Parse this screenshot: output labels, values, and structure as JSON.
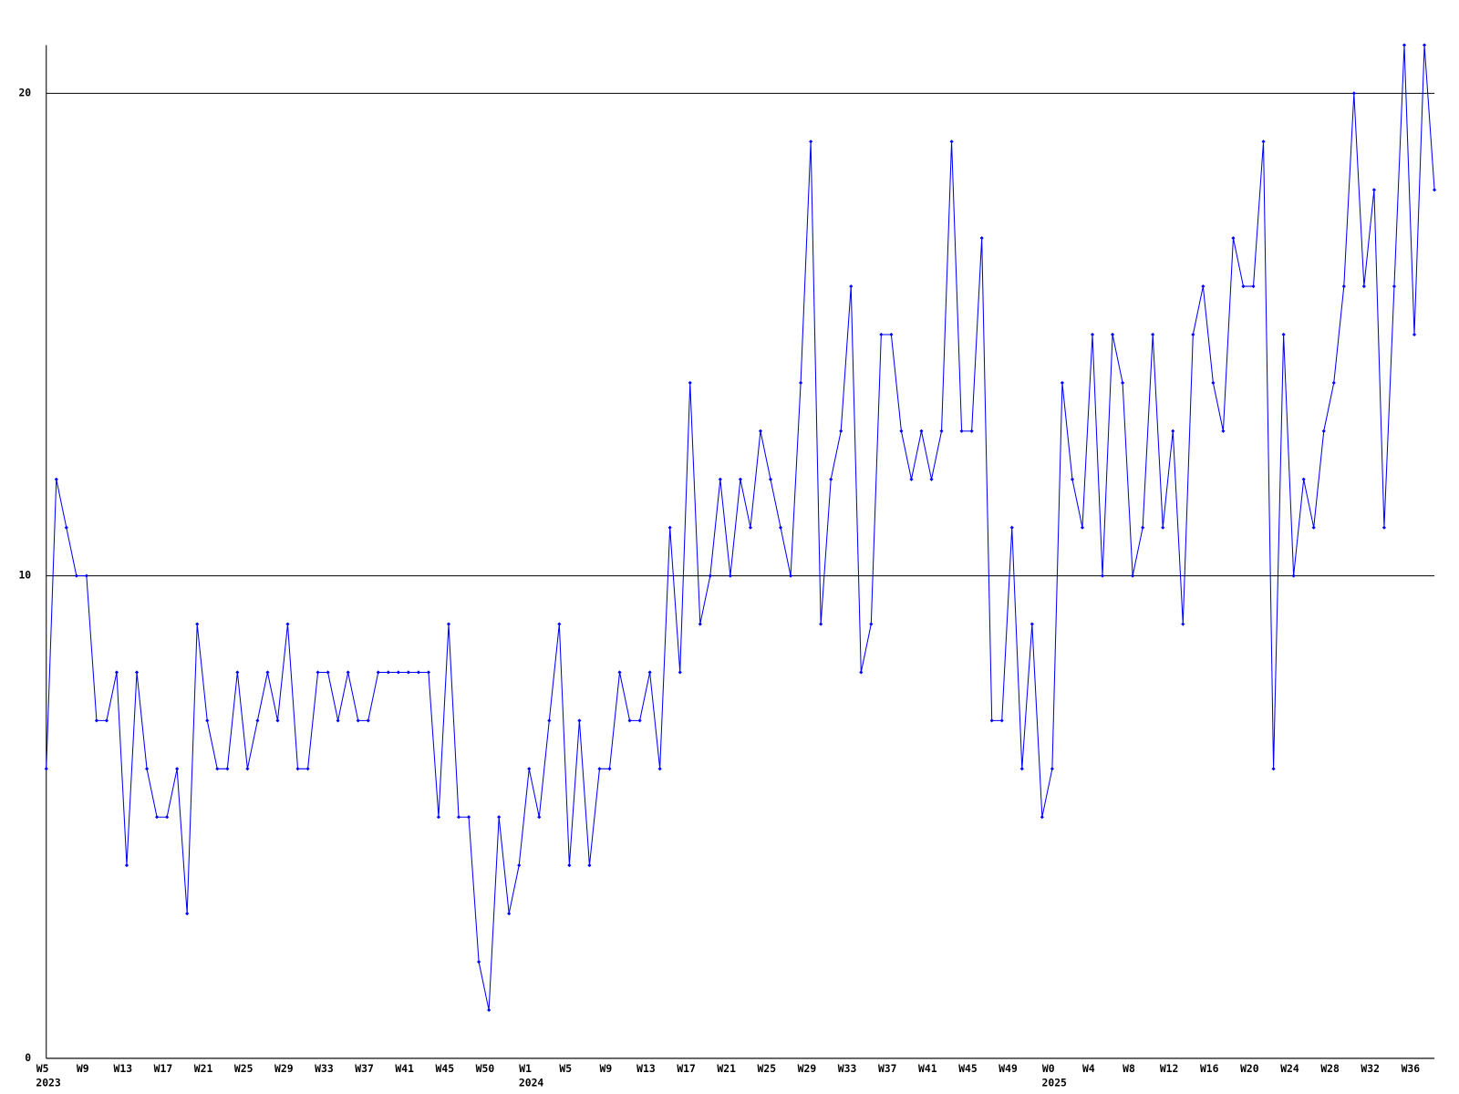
{
  "chart_data": {
    "type": "line",
    "categories": [
      "W5",
      null,
      null,
      null,
      "W9",
      null,
      null,
      null,
      "W13",
      null,
      null,
      null,
      "W17",
      null,
      null,
      null,
      "W21",
      null,
      null,
      null,
      "W25",
      null,
      null,
      null,
      "W29",
      null,
      null,
      null,
      "W33",
      null,
      null,
      null,
      "W37",
      null,
      null,
      null,
      "W41",
      null,
      null,
      null,
      "W45",
      null,
      null,
      null,
      "W50",
      null,
      null,
      null,
      "W1",
      null,
      null,
      null,
      "W5",
      null,
      null,
      null,
      "W9",
      null,
      null,
      null,
      "W13",
      null,
      null,
      null,
      "W17",
      null,
      null,
      null,
      "W21",
      null,
      null,
      null,
      "W25",
      null,
      null,
      null,
      "W29",
      null,
      null,
      null,
      "W33",
      null,
      null,
      null,
      "W37",
      null,
      null,
      null,
      "W41",
      null,
      null,
      null,
      "W45",
      null,
      null,
      null,
      "W49",
      null,
      null,
      null,
      "W0",
      null,
      null,
      null,
      "W4",
      null,
      null,
      null,
      "W8",
      null,
      null,
      null,
      "W12",
      null,
      null,
      null,
      "W16",
      null,
      null,
      null,
      "W20",
      null,
      null,
      null,
      "W24",
      null,
      null,
      null,
      "W28",
      null,
      null,
      null,
      "W32",
      null,
      null,
      null,
      "W36",
      null,
      null
    ],
    "year_labels": [
      {
        "index": 0,
        "label": "2023"
      },
      {
        "index": 48,
        "label": "2024"
      },
      {
        "index": 100,
        "label": "2025"
      }
    ],
    "series": [
      {
        "color": "#0000ff",
        "values": [
          6,
          12,
          11,
          10,
          10,
          7,
          7,
          8,
          4,
          8,
          6,
          5,
          5,
          6,
          3,
          9,
          7,
          6,
          6,
          8,
          6,
          7,
          8,
          7,
          9,
          6,
          6,
          8,
          8,
          7,
          8,
          7,
          7,
          8,
          8,
          8,
          8,
          8,
          8,
          5,
          9,
          5,
          5,
          2,
          1,
          5,
          3,
          4,
          6,
          5,
          7,
          9,
          4,
          7,
          4,
          6,
          6,
          8,
          7,
          7,
          8,
          6,
          11,
          8,
          14,
          9,
          10,
          12,
          10,
          12,
          11,
          13,
          12,
          11,
          10,
          14,
          19,
          9,
          12,
          13,
          16,
          8,
          9,
          15,
          15,
          13,
          12,
          13,
          12,
          13,
          19,
          13,
          13,
          17,
          7,
          7,
          11,
          6,
          9,
          5,
          6,
          14,
          12,
          11,
          15,
          10,
          15,
          14,
          10,
          11,
          15,
          11,
          13,
          9,
          15,
          16,
          14,
          13,
          17,
          16,
          16,
          19,
          6,
          15,
          10,
          12,
          11,
          13,
          14,
          16,
          20,
          16,
          18,
          11,
          16,
          21,
          15,
          21,
          18
        ]
      }
    ],
    "ylim": [
      0,
      21
    ],
    "yticks": [
      0,
      10,
      20
    ],
    "grid": true
  }
}
